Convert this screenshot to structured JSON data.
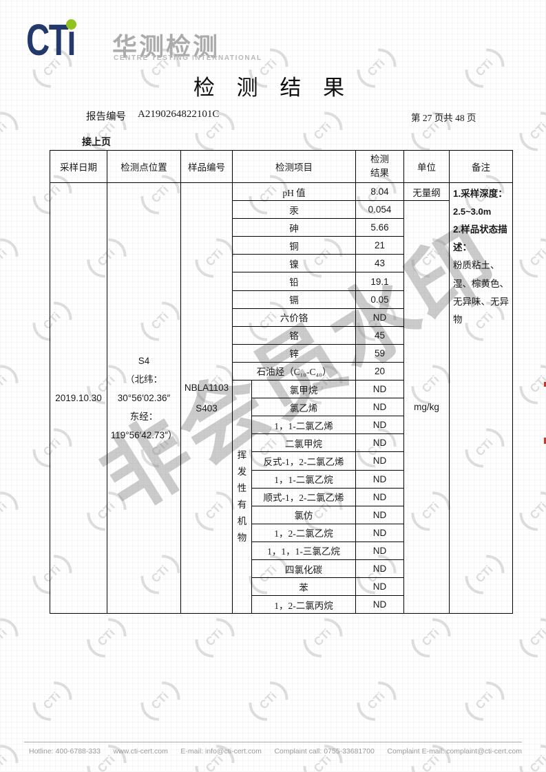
{
  "logo": {
    "cti": "CTi",
    "cn": "华测检测",
    "en": "CENTRE TESTING INTERNATIONAL"
  },
  "title": "检 测 结 果",
  "report": {
    "label": "报告编号",
    "number": "A2190264822101C",
    "page": "第 27 页共 48 页"
  },
  "continued_label": "接上页",
  "table": {
    "headers": {
      "date": "采样日期",
      "location": "检测点位置",
      "sample_no": "样品编号",
      "item": "检测项目",
      "result": "检测\n结果",
      "unit": "单位",
      "remark": "备注"
    },
    "sample": {
      "date": "2019.10.30",
      "location_lines": [
        "S4",
        "（北纬：",
        "30°56′02.36″",
        "东经：",
        "119°56′42.73″）"
      ],
      "sample_no_lines": [
        "NBLA1103",
        "S403"
      ]
    },
    "voc_label": "挥发性有机物",
    "units": {
      "ph": "无量纲",
      "rest": "mg/kg"
    },
    "rows": [
      {
        "item": "pH 值",
        "result": "8.04"
      },
      {
        "item": "汞",
        "result": "0.054"
      },
      {
        "item": "砷",
        "result": "5.66"
      },
      {
        "item": "铜",
        "result": "21"
      },
      {
        "item": "镍",
        "result": "43"
      },
      {
        "item": "铅",
        "result": "19.1"
      },
      {
        "item": "镉",
        "result": "0.05"
      },
      {
        "item": "六价铬",
        "result": "ND"
      },
      {
        "item": "铬",
        "result": "45"
      },
      {
        "item": "锌",
        "result": "59"
      },
      {
        "item": "石油烃（C₁₀-C₄₀）",
        "result": "20"
      },
      {
        "item": "氯甲烷",
        "result": "ND"
      },
      {
        "item": "氯乙烯",
        "result": "ND"
      },
      {
        "item": "1，1-二氯乙烯",
        "result": "ND"
      },
      {
        "item": "二氯甲烷",
        "result": "ND"
      },
      {
        "item": "反式-1，2-二氯乙烯",
        "result": "ND"
      },
      {
        "item": "1，1-二氯乙烷",
        "result": "ND"
      },
      {
        "item": "顺式-1，2-二氯乙烯",
        "result": "ND"
      },
      {
        "item": "氯仿",
        "result": "ND"
      },
      {
        "item": "1，2-二氯乙烷",
        "result": "ND"
      },
      {
        "item": "1，1，1-三氯乙烷",
        "result": "ND"
      },
      {
        "item": "四氯化碳",
        "result": "ND"
      },
      {
        "item": "苯",
        "result": "ND"
      },
      {
        "item": "1，2-二氯丙烷",
        "result": "ND"
      }
    ],
    "remark": {
      "l1": "1.采样深度：",
      "l2": "2.5~3.0m",
      "l3": "2.样品状态描述：",
      "l4": "粉质粘土、湿、棕黄色、无异味、无异物"
    }
  },
  "watermark": {
    "logo_text": "CTi",
    "diagonal_text": "非会员水印"
  },
  "footer": {
    "items": [
      "Hotline: 400-6788-333",
      "www.cti-cert.com",
      "E-mail: info@cti-cert.com",
      "Complaint call: 0755-33681700",
      "Complaint E-mail: complaint@cti-cert.com"
    ]
  }
}
